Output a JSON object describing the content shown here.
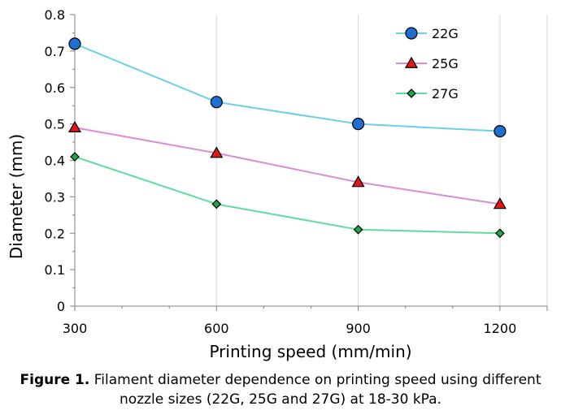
{
  "chart_data": {
    "type": "line",
    "x": [
      300,
      600,
      900,
      1200
    ],
    "xlabel": "Printing speed (mm/min)",
    "ylabel": "Diameter (mm)",
    "xlim": [
      300,
      1300
    ],
    "ylim": [
      0,
      0.8
    ],
    "x_ticks": [
      "300",
      "600",
      "900",
      "1200"
    ],
    "y_ticks": [
      "0",
      "0.1",
      "0.2",
      "0.3",
      "0.4",
      "0.5",
      "0.6",
      "0.7",
      "0.8"
    ],
    "grid": "vertical",
    "legend": "top-right",
    "series": [
      {
        "name": "22G",
        "values": [
          0.72,
          0.56,
          0.5,
          0.48
        ],
        "line_color": "#6dcfe6",
        "marker": "circle",
        "marker_color": "#1f6fd1"
      },
      {
        "name": "25G",
        "values": [
          0.49,
          0.42,
          0.34,
          0.28
        ],
        "line_color": "#d98bd6",
        "marker": "triangle",
        "marker_color": "#e01818"
      },
      {
        "name": "27G",
        "values": [
          0.41,
          0.28,
          0.21,
          0.2
        ],
        "line_color": "#5fdc9e",
        "marker": "diamond",
        "marker_color": "#1aa84a"
      }
    ]
  },
  "caption": {
    "label": "Figure 1.",
    "text": " Filament diameter dependence on printing speed using different nozzle sizes (22G, 25G and 27G) at 18-30 kPa."
  }
}
